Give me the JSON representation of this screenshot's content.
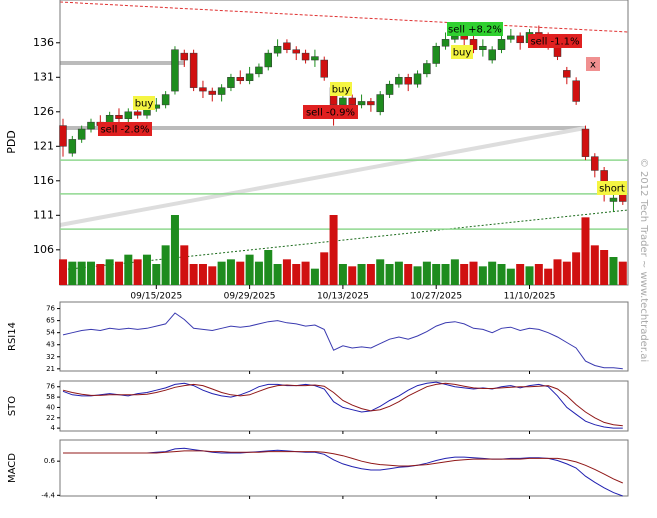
{
  "chart_data": {
    "type": "candlestick",
    "symbol": "PDD",
    "watermark": "© 2012 Tech Trader ~ www.techtrader.ai",
    "categories": [
      null,
      null,
      null,
      null,
      null,
      null,
      null,
      null,
      null,
      null,
      "09/15/2025",
      null,
      null,
      null,
      null,
      null,
      null,
      null,
      null,
      null,
      "09/29/2025",
      null,
      null,
      null,
      null,
      null,
      null,
      null,
      null,
      null,
      "10/13/2025",
      null,
      null,
      null,
      null,
      null,
      null,
      null,
      null,
      null,
      "10/27/2025",
      null,
      null,
      null,
      null,
      null,
      null,
      null,
      null,
      null,
      "11/10/2025",
      null,
      null,
      null,
      null,
      null,
      null,
      null,
      null,
      null,
      null
    ],
    "open": [
      124,
      120,
      122,
      123.5,
      124.5,
      124,
      125.5,
      125,
      126,
      125.5,
      126.5,
      127,
      129,
      134.5,
      134.5,
      129.5,
      129,
      128.5,
      129.5,
      131,
      130.5,
      131.5,
      132.5,
      134.5,
      136,
      135,
      134.5,
      133.5,
      133.5,
      129.5,
      127,
      128,
      127,
      127.5,
      126,
      128.5,
      130,
      131,
      130,
      131.5,
      133,
      135.5,
      136.5,
      137,
      136.5,
      135,
      133.5,
      135,
      136.5,
      137,
      136,
      137.5,
      137,
      136,
      132,
      130.5,
      123.5,
      119.5,
      117.5,
      113,
      114
    ],
    "high": [
      125,
      122.5,
      124,
      125,
      125.5,
      126,
      126.5,
      126.5,
      127,
      127.5,
      128,
      129,
      135.5,
      135,
      135,
      130.5,
      129.5,
      130,
      131.5,
      132,
      132.5,
      133,
      135,
      136.5,
      136.5,
      135.5,
      135,
      135,
      134,
      130,
      129,
      128.5,
      128.5,
      128,
      129,
      130.5,
      131.5,
      131.5,
      132,
      133.5,
      136,
      137.5,
      138,
      137.5,
      137,
      136.5,
      135.5,
      137,
      138,
      137.5,
      138,
      138.5,
      137.5,
      136.5,
      132.5,
      131,
      124,
      120,
      118,
      114.5,
      115
    ],
    "low": [
      119.5,
      119.5,
      121.5,
      123,
      123.5,
      123.5,
      124.5,
      124.5,
      125,
      125,
      126,
      126.5,
      128.5,
      132.5,
      129,
      128,
      127.5,
      127.5,
      129,
      130,
      130,
      131,
      132,
      134,
      134.5,
      133.5,
      133,
      132.5,
      130.5,
      124,
      126,
      126.5,
      126.5,
      126,
      125.5,
      128,
      129.5,
      129,
      129.5,
      131,
      132.5,
      135,
      136,
      135.5,
      134.5,
      134,
      133,
      134.5,
      136,
      135,
      135.5,
      136.5,
      135,
      133.5,
      130,
      127,
      119,
      116.5,
      113,
      111.5,
      112.5
    ],
    "close": [
      121,
      122,
      123.5,
      124.5,
      124,
      125.5,
      125,
      126,
      125.5,
      126.5,
      127,
      128.5,
      135,
      133.5,
      129.5,
      129,
      128.5,
      129.5,
      131,
      130.5,
      131.5,
      132.5,
      134.5,
      135.5,
      135,
      134.5,
      133.5,
      134,
      131,
      127,
      128,
      127,
      127.5,
      127,
      128.5,
      130,
      131,
      130,
      131.5,
      133,
      135.5,
      136.5,
      137,
      136.5,
      135,
      135.5,
      135,
      136.5,
      137,
      136,
      137.5,
      137,
      136,
      134,
      131,
      127.5,
      119.5,
      117.5,
      114,
      113.5,
      113
    ],
    "volume": [
      22,
      20,
      20,
      20,
      18,
      22,
      20,
      26,
      22,
      26,
      18,
      34,
      60,
      34,
      18,
      18,
      16,
      20,
      22,
      20,
      26,
      20,
      30,
      18,
      22,
      18,
      20,
      14,
      28,
      60,
      18,
      16,
      18,
      18,
      22,
      18,
      20,
      18,
      16,
      20,
      18,
      18,
      22,
      18,
      20,
      16,
      20,
      18,
      14,
      18,
      16,
      18,
      14,
      22,
      20,
      28,
      58,
      34,
      30,
      24,
      20
    ],
    "up_color": "#1e8c1e",
    "down_color": "#d01010",
    "ylim": [
      100.9,
      142.2
    ],
    "yticks": [
      136,
      131,
      126,
      121,
      116,
      111,
      106
    ],
    "support_lines": [
      119,
      114.1,
      109
    ],
    "support_color": "#8fd88f",
    "annotations": [
      {
        "text": "buy",
        "color": "#f5f542"
      },
      {
        "text": "sell -2.8%",
        "color": "#e02020"
      },
      {
        "text": "buy",
        "color": "#f5f542"
      },
      {
        "text": "sell -0.9%",
        "color": "#e02020"
      },
      {
        "text": "sell +8.2%",
        "color": "#30d030"
      },
      {
        "text": "buy",
        "color": "#f5f542"
      },
      {
        "text": "sell -1.1%",
        "color": "#e02020"
      },
      {
        "text": "x",
        "color": "#f09090"
      },
      {
        "text": "short",
        "color": "#f5f542"
      }
    ],
    "indicators": [
      {
        "name": "RSI14",
        "ylim": [
          19,
          82
        ],
        "yticks": [
          76,
          65,
          54,
          43,
          32,
          21
        ],
        "series": [
          {
            "color": "#3a3ab0",
            "values": [
              52,
              54,
              56,
              57,
              56,
              58,
              57,
              58,
              57,
              58,
              60,
              62,
              72,
              66,
              58,
              57,
              56,
              58,
              60,
              59,
              60,
              62,
              64,
              65,
              63,
              62,
              60,
              61,
              57,
              38,
              42,
              40,
              41,
              40,
              44,
              48,
              50,
              48,
              51,
              55,
              60,
              63,
              64,
              62,
              58,
              57,
              54,
              58,
              59,
              56,
              58,
              57,
              54,
              50,
              45,
              40,
              28,
              24,
              22,
              22,
              21
            ]
          }
        ]
      },
      {
        "name": "STO",
        "ylim": [
          -1,
          86
        ],
        "yticks": [
          76,
          58,
          40,
          22,
          4
        ],
        "series": [
          {
            "color": "#2020b0",
            "values": [
              68,
              62,
              60,
              60,
              62,
              64,
              62,
              60,
              64,
              66,
              70,
              74,
              80,
              82,
              78,
              70,
              64,
              60,
              58,
              62,
              68,
              76,
              80,
              80,
              78,
              78,
              80,
              78,
              72,
              50,
              40,
              36,
              32,
              34,
              42,
              52,
              60,
              70,
              78,
              82,
              84,
              80,
              76,
              74,
              72,
              74,
              72,
              76,
              78,
              74,
              78,
              80,
              76,
              60,
              40,
              28,
              16,
              10,
              6,
              4,
              4
            ]
          },
          {
            "color": "#901818",
            "values": [
              70,
              66,
              63,
              61,
              61,
              62,
              62,
              62,
              62,
              63,
              66,
              70,
              75,
              78,
              80,
              78,
              72,
              66,
              62,
              60,
              62,
              68,
              74,
              78,
              79,
              78,
              78,
              79,
              77,
              66,
              52,
              44,
              38,
              34,
              36,
              42,
              50,
              60,
              68,
              76,
              80,
              82,
              80,
              77,
              74,
              73,
              73,
              74,
              75,
              76,
              76,
              77,
              78,
              72,
              60,
              45,
              32,
              22,
              14,
              10,
              8
            ]
          }
        ]
      },
      {
        "name": "MACD",
        "ylim": [
          -4.5,
          3.7
        ],
        "yticks": [
          0.6,
          -4.4
        ],
        "series": [
          {
            "color": "#2020b0",
            "values": [
              1.8,
              1.8,
              1.8,
              1.8,
              1.8,
              1.8,
              1.8,
              1.8,
              1.8,
              1.8,
              1.9,
              2.0,
              2.4,
              2.5,
              2.3,
              2.1,
              1.9,
              1.8,
              1.8,
              1.8,
              1.9,
              2.0,
              2.1,
              2.2,
              2.1,
              2.0,
              1.9,
              1.9,
              1.6,
              0.8,
              0.2,
              -0.2,
              -0.5,
              -0.7,
              -0.7,
              -0.5,
              -0.3,
              -0.2,
              0,
              0.3,
              0.7,
              1.0,
              1.2,
              1.2,
              1.1,
              1.0,
              0.9,
              0.9,
              1.0,
              1.0,
              1.1,
              1.1,
              1.0,
              0.7,
              0.2,
              -0.4,
              -1.6,
              -2.5,
              -3.3,
              -4.0,
              -4.5
            ]
          },
          {
            "color": "#901818",
            "values": [
              1.8,
              1.8,
              1.8,
              1.8,
              1.8,
              1.8,
              1.8,
              1.8,
              1.8,
              1.8,
              1.8,
              1.9,
              2.0,
              2.1,
              2.1,
              2.1,
              2.0,
              2.0,
              1.9,
              1.9,
              1.9,
              1.9,
              2.0,
              2.0,
              2.0,
              2.0,
              2.0,
              2.0,
              1.9,
              1.7,
              1.4,
              1.0,
              0.6,
              0.3,
              0.1,
              0,
              -0.1,
              -0.1,
              0,
              0.1,
              0.3,
              0.5,
              0.7,
              0.8,
              0.9,
              0.9,
              0.9,
              0.9,
              0.9,
              0.9,
              1.0,
              1.0,
              1.0,
              1.0,
              0.8,
              0.5,
              0,
              -0.6,
              -1.3,
              -2.0,
              -2.6
            ]
          }
        ]
      }
    ]
  }
}
